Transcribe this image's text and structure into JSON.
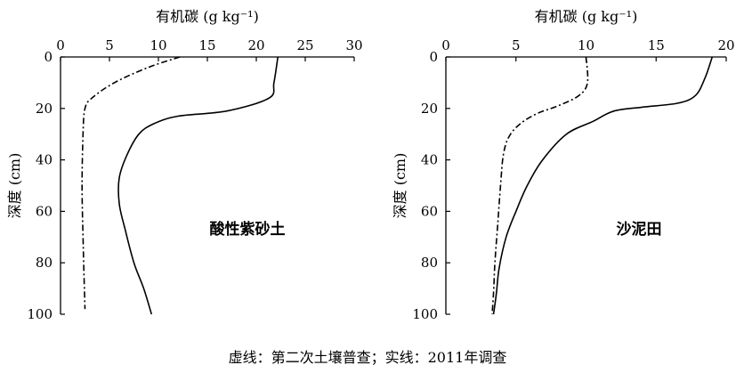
{
  "chart_data": [
    {
      "type": "line",
      "panel": "left",
      "xlabel": "有机碳 (g kg⁻¹)",
      "ylabel": "深度 (cm)",
      "label": "酸性紫砂土",
      "xlim": [
        0,
        30
      ],
      "ylim": [
        0,
        100
      ],
      "x_ticks": [
        0,
        5,
        10,
        15,
        20,
        25,
        30
      ],
      "y_ticks": [
        0,
        20,
        40,
        60,
        80,
        100
      ],
      "x_axis_position": "top",
      "y_inverted": true,
      "grid": false,
      "series": [
        {
          "style": "dashdot",
          "points": [
            [
              12.2,
              0
            ],
            [
              9.0,
              4
            ],
            [
              5.5,
              10
            ],
            [
              3.2,
              16
            ],
            [
              2.5,
              20
            ],
            [
              2.3,
              30
            ],
            [
              2.2,
              50
            ],
            [
              2.3,
              70
            ],
            [
              2.4,
              85
            ],
            [
              2.5,
              98
            ]
          ]
        },
        {
          "style": "solid",
          "points": [
            [
              22.2,
              0
            ],
            [
              21.8,
              10
            ],
            [
              21.3,
              16
            ],
            [
              17.0,
              21
            ],
            [
              12.0,
              23
            ],
            [
              9.5,
              26
            ],
            [
              8.0,
              30
            ],
            [
              6.8,
              38
            ],
            [
              6.0,
              47
            ],
            [
              6.0,
              57
            ],
            [
              6.6,
              67
            ],
            [
              7.5,
              80
            ],
            [
              8.5,
              90
            ],
            [
              9.3,
              100
            ]
          ]
        }
      ]
    },
    {
      "type": "line",
      "panel": "right",
      "xlabel": "有机碳 (g kg⁻¹)",
      "ylabel": "深度 (cm)",
      "label": "沙泥田",
      "xlim": [
        0,
        20
      ],
      "ylim": [
        0,
        100
      ],
      "x_ticks": [
        0,
        5,
        10,
        15,
        20
      ],
      "y_ticks": [
        0,
        20,
        40,
        60,
        80,
        100
      ],
      "x_axis_position": "top",
      "y_inverted": true,
      "grid": false,
      "series": [
        {
          "style": "dashdot",
          "points": [
            [
              10.0,
              0
            ],
            [
              10.1,
              10
            ],
            [
              9.5,
              15
            ],
            [
              8.0,
              19
            ],
            [
              6.5,
              22
            ],
            [
              5.3,
              26
            ],
            [
              4.5,
              31
            ],
            [
              4.1,
              38
            ],
            [
              3.9,
              50
            ],
            [
              3.7,
              65
            ],
            [
              3.5,
              80
            ],
            [
              3.4,
              92
            ],
            [
              3.3,
              100
            ]
          ]
        },
        {
          "style": "solid",
          "points": [
            [
              19.0,
              0
            ],
            [
              18.5,
              8
            ],
            [
              17.8,
              15
            ],
            [
              16.5,
              18
            ],
            [
              14.0,
              19.5
            ],
            [
              12.0,
              21
            ],
            [
              10.5,
              25
            ],
            [
              8.6,
              30
            ],
            [
              6.9,
              40
            ],
            [
              5.8,
              50
            ],
            [
              5.0,
              60
            ],
            [
              4.3,
              70
            ],
            [
              3.8,
              82
            ],
            [
              3.6,
              92
            ],
            [
              3.4,
              100
            ]
          ]
        }
      ]
    }
  ],
  "caption": "虚线：第二次土壤普查；实线：2011年调查"
}
